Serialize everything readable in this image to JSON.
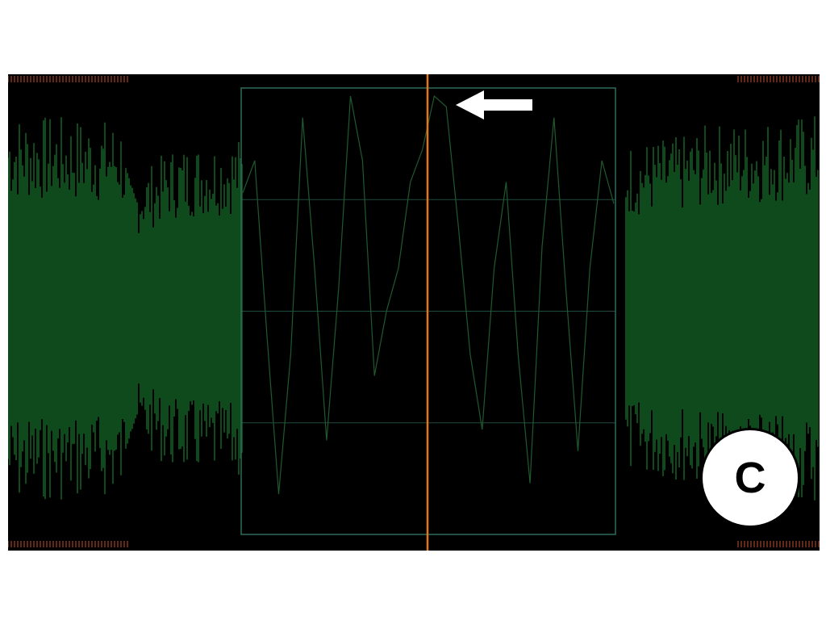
{
  "figure": {
    "panel_label": "C"
  },
  "colors": {
    "background": "#000000",
    "waveform": "#0f4a1c",
    "zoom_trace": "#1f5a2e",
    "zoom_frame": "#2f6b5c",
    "cursor": "#e0781a",
    "edge_marks": "#c05030",
    "arrow": "#ffffff"
  },
  "icons": {
    "pointer": "arrow-left-icon"
  },
  "chart_data": {
    "type": "line",
    "title": "",
    "xlabel": "",
    "ylabel": "",
    "grid": true,
    "legend": "none",
    "overview": {
      "description_of_shape": "dense oscillation; envelope dips at left, dense block around left and right regions",
      "envelope": [
        {
          "x": 0.0,
          "amp": 0.85
        },
        {
          "x": 0.14,
          "amp": 0.82
        },
        {
          "x": 0.15,
          "amp": 0.55
        },
        {
          "x": 0.2,
          "amp": 0.7
        },
        {
          "x": 0.29,
          "amp": 0.75
        },
        {
          "x": 0.76,
          "amp": 0.72
        },
        {
          "x": 0.83,
          "amp": 0.75
        },
        {
          "x": 0.86,
          "amp": 0.8
        },
        {
          "x": 0.92,
          "amp": 0.82
        },
        {
          "x": 1.0,
          "amp": 0.85
        }
      ]
    },
    "zoom": {
      "x_start": 0.29,
      "x_end": 0.76,
      "cursor_x": 0.52,
      "series": [
        {
          "values": [
            0.55,
            0.7,
            -0.1,
            -0.85,
            -0.2,
            0.9,
            0.2,
            -0.6,
            0.1,
            1.0,
            0.7,
            -0.3,
            0.0,
            0.2,
            0.6,
            0.75,
            1.0,
            0.95,
            0.4,
            -0.2,
            -0.55,
            0.2,
            0.6,
            -0.2,
            -0.8,
            0.3,
            0.9,
            0.1,
            -0.65,
            0.2,
            0.7,
            0.5
          ]
        }
      ]
    }
  }
}
